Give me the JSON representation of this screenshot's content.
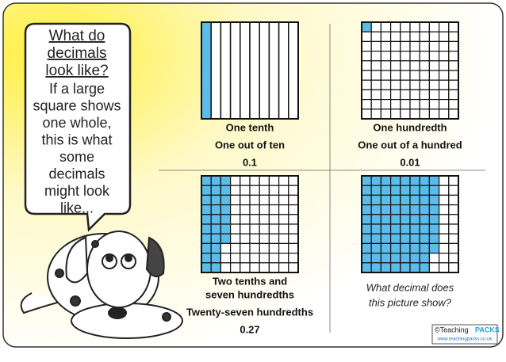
{
  "bubble": {
    "title_lines": [
      "What do",
      "decimals",
      "look like?"
    ],
    "body_lines": [
      "If a large",
      "square shows",
      "one whole,",
      "this is what",
      "some",
      "decimals",
      "might look",
      "like..."
    ]
  },
  "panels": [
    {
      "grid": {
        "cells": 10,
        "shaded": 1
      },
      "labels": [
        "One tenth",
        "One out of ten",
        "0.1"
      ]
    },
    {
      "grid": {
        "cells": 100,
        "shaded": 1
      },
      "labels": [
        "One hundredth",
        "One out of a hundred",
        "0.01"
      ]
    },
    {
      "grid": {
        "cells": 100,
        "shaded": 27
      },
      "labels": [
        "Two tenths and",
        "seven hundredths",
        "Twenty-seven hundredths",
        "0.27"
      ]
    },
    {
      "grid": {
        "cells": 100,
        "shaded": 78
      },
      "question": [
        "What decimal does",
        "this picture show?"
      ]
    }
  ],
  "footer": {
    "brand": "©Teaching",
    "brand_mark": "PACKS",
    "url": "www.teachingpacks.co.uk"
  }
}
